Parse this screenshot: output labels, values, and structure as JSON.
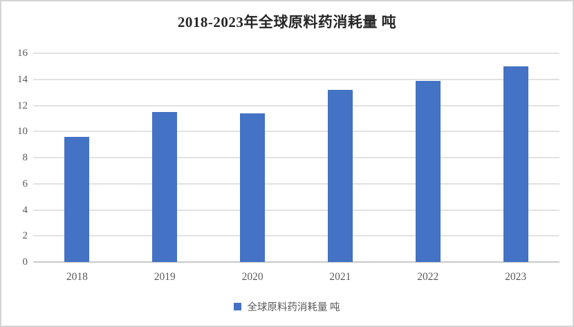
{
  "title": "2018-2023年全球原料药消耗量 吨",
  "legend": {
    "label": "全球原料药消耗量 吨",
    "marker_color": "#4472c4"
  },
  "colors": {
    "bar": "#4472c4",
    "gridline": "#e2e2e2",
    "axis_line": "#c9c9c9",
    "tick_label": "#595959",
    "title_text": "#262626",
    "frame_border": "#d4d4d4",
    "background": "#ffffff"
  },
  "chart_data": {
    "type": "bar",
    "title": "2018-2023年全球原料药消耗量 吨",
    "categories": [
      "2018",
      "2019",
      "2020",
      "2021",
      "2022",
      "2023"
    ],
    "series": [
      {
        "name": "全球原料药消耗量 吨",
        "values": [
          9.6,
          11.5,
          11.4,
          13.2,
          13.9,
          15.0
        ]
      }
    ],
    "xlabel": "",
    "ylabel": "",
    "ylim": [
      0,
      16
    ],
    "yticks": [
      0,
      2,
      4,
      6,
      8,
      10,
      12,
      14,
      16
    ],
    "grid": true,
    "legend_position": "bottom"
  }
}
